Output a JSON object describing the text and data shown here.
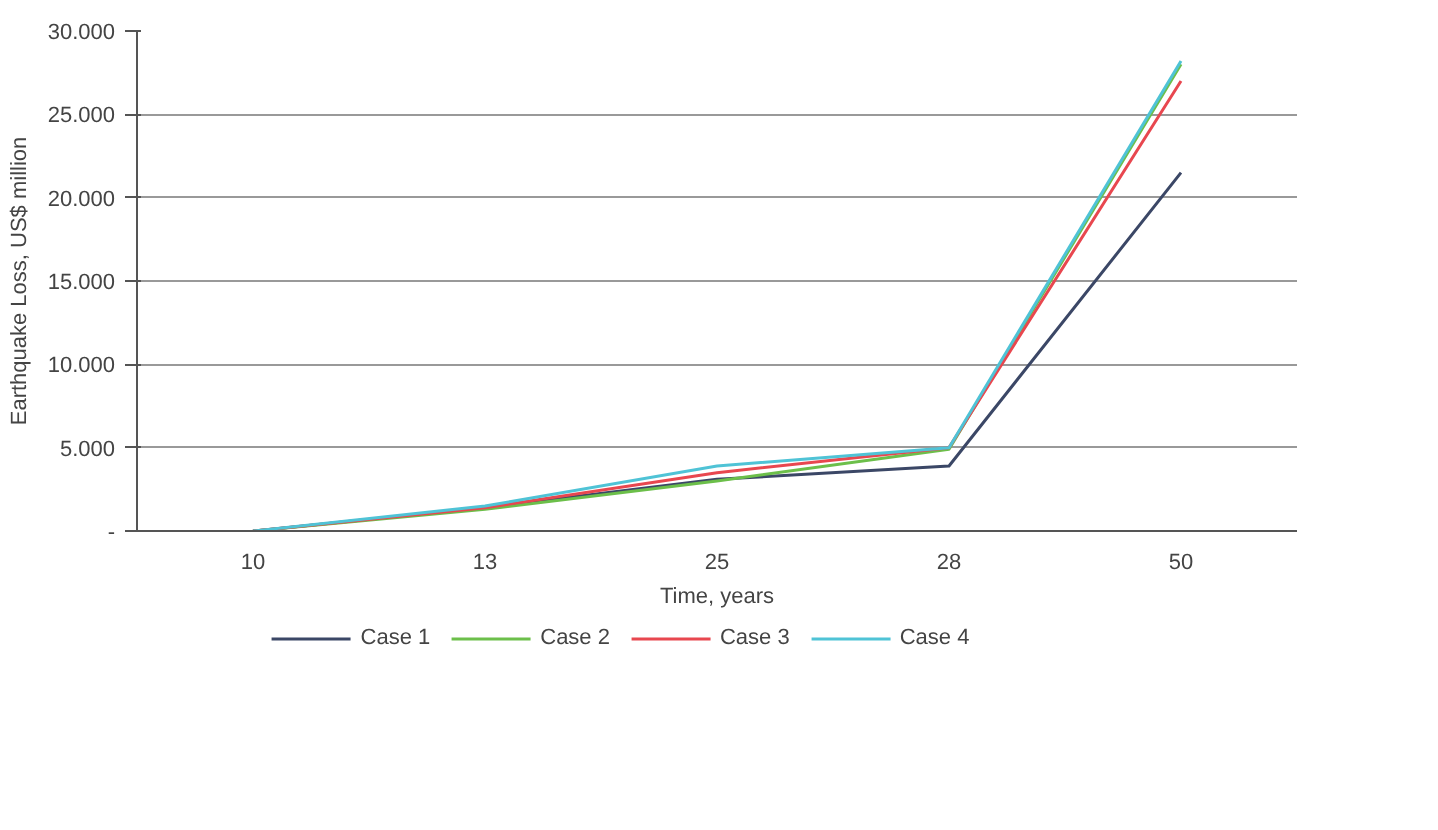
{
  "chart_data": {
    "type": "line",
    "xlabel": "Time, years",
    "ylabel": "Earthquake Loss, US$ million",
    "categories": [
      "10",
      "13",
      "25",
      "28",
      "50"
    ],
    "series": [
      {
        "name": "Case 1",
        "color": "#3b4766",
        "values": [
          0,
          1400,
          3100,
          3900,
          21500
        ]
      },
      {
        "name": "Case 2",
        "color": "#6cbf4a",
        "values": [
          0,
          1300,
          3000,
          4900,
          28000
        ]
      },
      {
        "name": "Case 3",
        "color": "#e8474f",
        "values": [
          0,
          1400,
          3500,
          5000,
          27000
        ]
      },
      {
        "name": "Case 4",
        "color": "#4fc3d6",
        "values": [
          0,
          1500,
          3900,
          5000,
          28200
        ]
      }
    ],
    "ylim": [
      0,
      30000
    ],
    "yticks": [
      {
        "value": 0,
        "label": "-"
      },
      {
        "value": 5000,
        "label": "5.000"
      },
      {
        "value": 10000,
        "label": "10.000"
      },
      {
        "value": 15000,
        "label": "15.000"
      },
      {
        "value": 20000,
        "label": "20.000"
      },
      {
        "value": 25000,
        "label": "25.000"
      },
      {
        "value": 30000,
        "label": "30.000"
      }
    ],
    "grid": "y",
    "legend": "bottom",
    "marker": "none",
    "line_style": "solid"
  }
}
